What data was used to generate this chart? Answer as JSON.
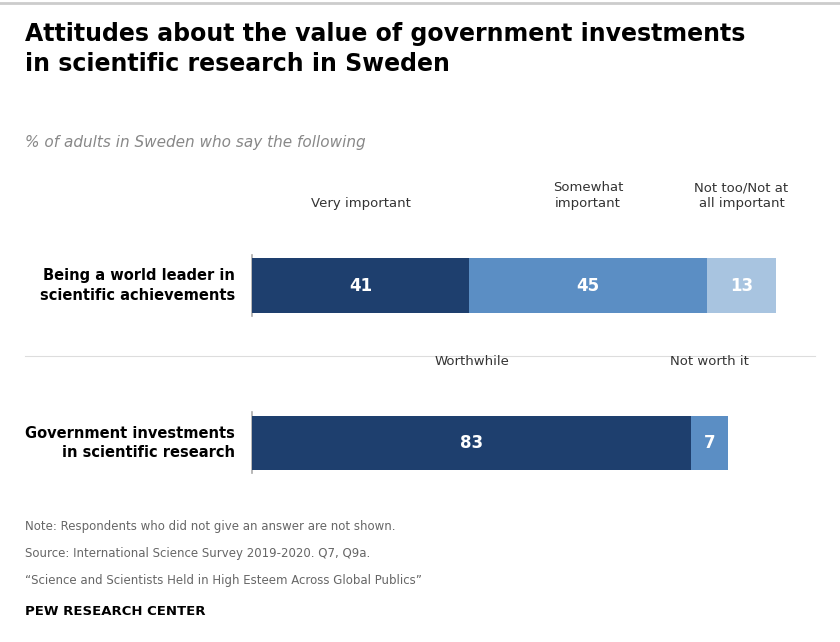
{
  "title": "Attitudes about the value of government investments\nin scientific research in Sweden",
  "subtitle": "% of adults in Sweden who say the following",
  "row1_label": "Being a world leader in\nscientific achievements",
  "row2_label": "Government investments\nin scientific research",
  "row1_values": [
    41,
    45,
    13
  ],
  "row2_values": [
    83,
    7
  ],
  "row1_colors": [
    "#1e3f6e",
    "#5b8ec4",
    "#a8c4e0"
  ],
  "row2_colors": [
    "#1e3f6e",
    "#5b8ec4"
  ],
  "col_headers_row1": [
    "Very important",
    "Somewhat\nimportant",
    "Not too/Not at\nall important"
  ],
  "col_headers_row2": [
    "Worthwhile",
    "Not worth it"
  ],
  "note_line1": "Note: Respondents who did not give an answer are not shown.",
  "note_line2": "Source: International Science Survey 2019-2020. Q7, Q9a.",
  "note_line3": "“Science and Scientists Held in High Esteem Across Global Publics”",
  "footer": "PEW RESEARCH CENTER",
  "bg_color": "#ffffff",
  "title_color": "#000000",
  "subtitle_color": "#888888",
  "label_color": "#000000",
  "note_color": "#666666"
}
